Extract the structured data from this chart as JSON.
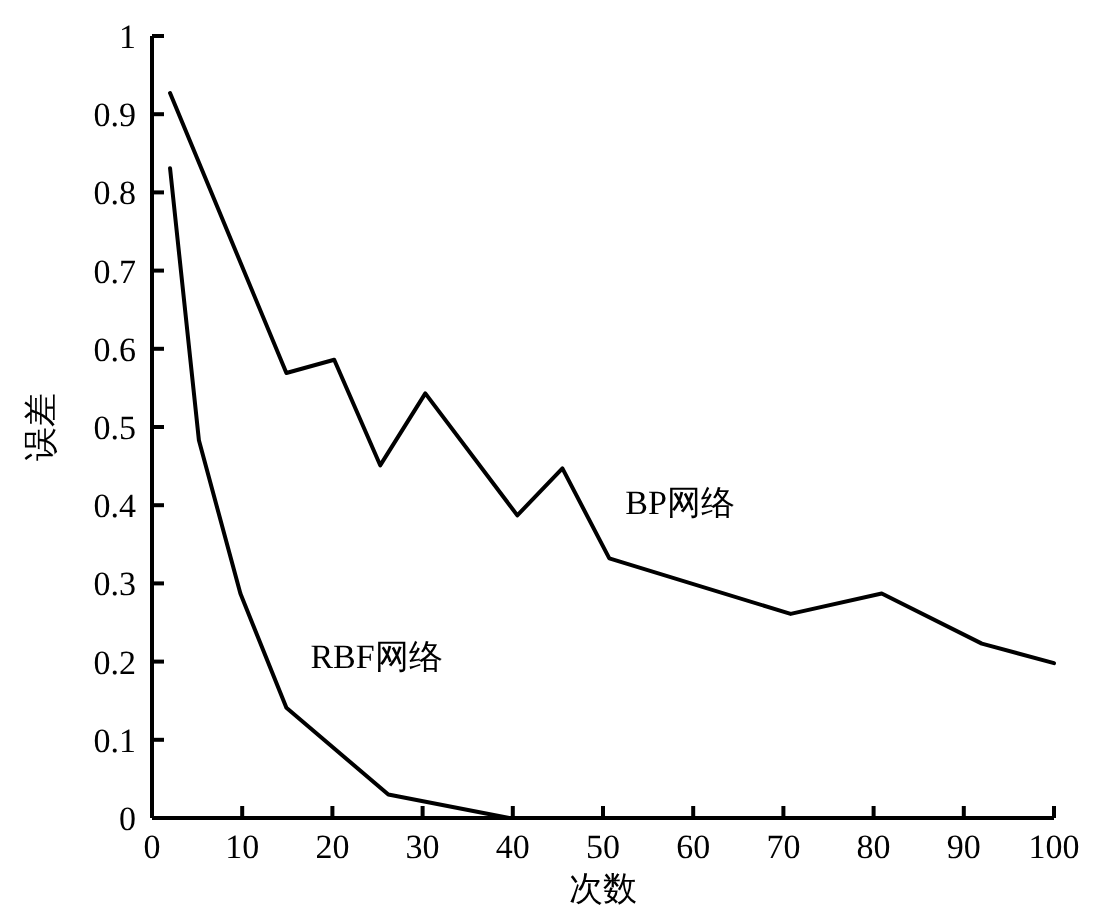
{
  "chart_data": {
    "type": "line",
    "xlabel": "次数",
    "ylabel": "误差",
    "xlim": [
      0,
      100
    ],
    "xticks": [
      0,
      10,
      20,
      30,
      40,
      50,
      60,
      70,
      80,
      90,
      100
    ],
    "ylim": [
      0,
      1
    ],
    "yticks": [
      0,
      0.1,
      0.2,
      0.3,
      0.4,
      0.5,
      0.6,
      0.7,
      0.8,
      0.9,
      1
    ],
    "grid": false,
    "marker": "none",
    "line_style": "solid",
    "series": [
      {
        "name": "BP网络",
        "color": "#000000",
        "x": [
          2,
          14.9,
          20.2,
          25.3,
          30.3,
          40.5,
          45.5,
          50.7,
          70.8,
          80.9,
          92,
          100
        ],
        "values": [
          0.927,
          0.569,
          0.586,
          0.451,
          0.543,
          0.387,
          0.447,
          0.332,
          0.261,
          0.287,
          0.223,
          0.198
        ]
      },
      {
        "name": "RBF网络",
        "color": "#000000",
        "x": [
          2,
          5.2,
          9.8,
          14.9,
          26.2,
          39.6
        ],
        "values": [
          0.831,
          0.483,
          0.287,
          0.141,
          0.03,
          0
        ]
      }
    ]
  }
}
